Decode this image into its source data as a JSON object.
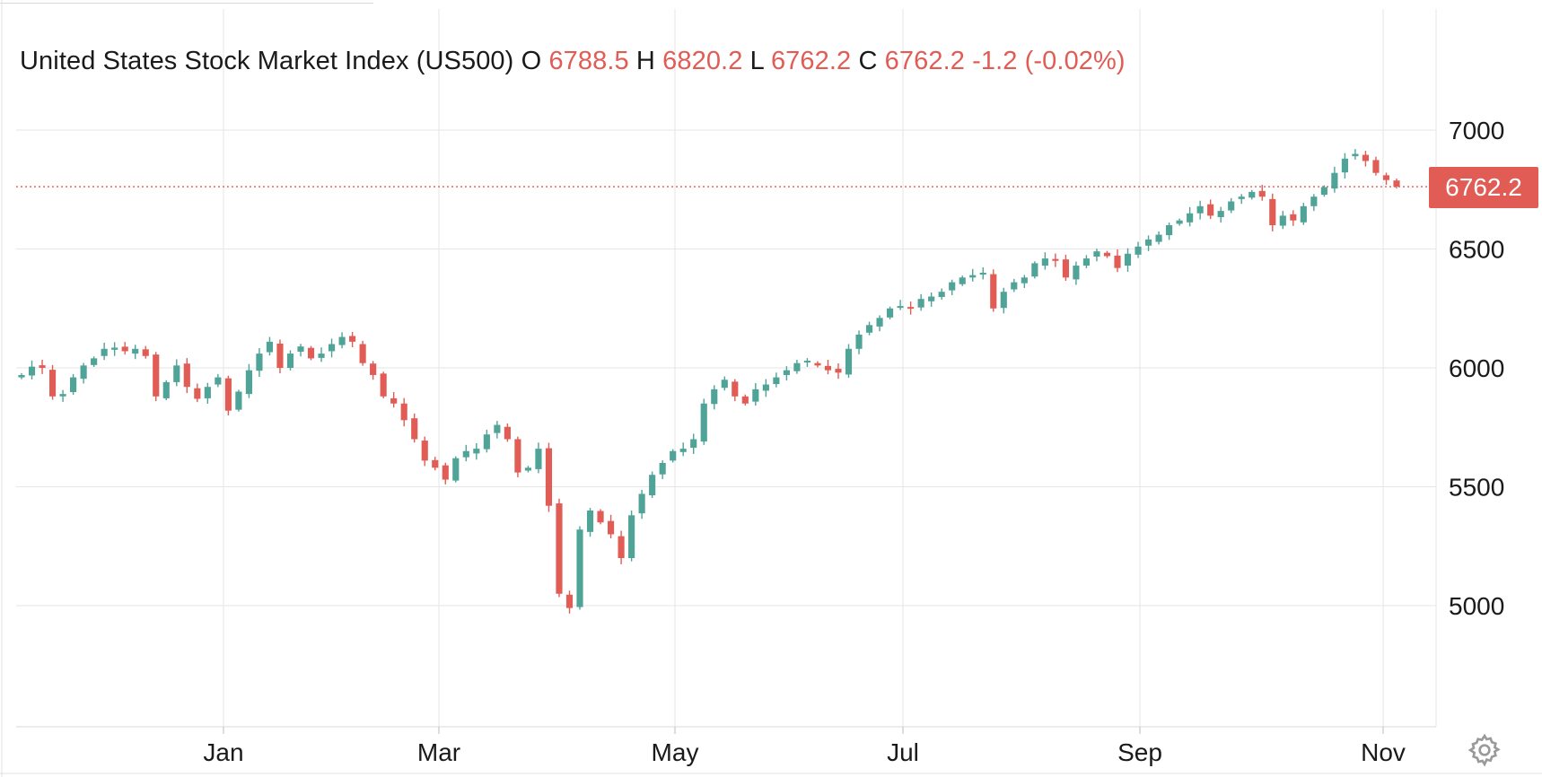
{
  "legend": {
    "title": "United States Stock Market Index (US500)",
    "o_label": "O",
    "o_value": "6788.5",
    "h_label": "H",
    "h_value": "6820.2",
    "l_label": "L",
    "l_value": "6762.2",
    "c_label": "C",
    "c_value": "6762.2",
    "change": "-1.2 (-0.02%)"
  },
  "last_price_label": "6762.2",
  "settings_icon": "gear-icon",
  "colors": {
    "up": "#4fa397",
    "down": "#e05c54",
    "grid": "#e6e6e6",
    "last_price_line": "#e05c54"
  },
  "chart_data": {
    "type": "candlestick",
    "title": "United States Stock Market Index (US500)",
    "xlabel": "",
    "ylabel": "",
    "ylim": [
      4500,
      7250
    ],
    "y_ticks": [
      "5000",
      "5500",
      "6000",
      "6500",
      "7000"
    ],
    "x_ticks": [
      "Jan",
      "Mar",
      "May",
      "Jul",
      "Sep",
      "Nov"
    ],
    "grid": true,
    "last_price": 6762.2,
    "ohlc": {
      "open": 6788.5,
      "high": 6820.2,
      "low": 6762.2,
      "close": 6762.2,
      "change": -1.2,
      "change_pct": -0.02
    },
    "x_axis_note": "approximately daily sessions from early December to early November",
    "close_path": [
      [
        "Dec",
        5970
      ],
      [
        "Dec",
        6005
      ],
      [
        "Dec",
        6000
      ],
      [
        "Dec",
        5880
      ],
      [
        "Dec",
        5890
      ],
      [
        "Dec",
        5960
      ],
      [
        "Dec",
        6010
      ],
      [
        "Dec",
        6040
      ],
      [
        "Dec",
        6080
      ],
      [
        "Dec",
        6085
      ],
      [
        "Dec",
        6070
      ],
      [
        "Dec",
        6080
      ],
      [
        "Dec",
        6050
      ],
      [
        "Jan",
        5880
      ],
      [
        "Jan",
        5940
      ],
      [
        "Jan",
        6010
      ],
      [
        "Jan",
        5920
      ],
      [
        "Jan",
        5870
      ],
      [
        "Jan",
        5920
      ],
      [
        "Jan",
        5960
      ],
      [
        "Jan",
        5820
      ],
      [
        "Jan",
        5900
      ],
      [
        "Jan",
        5990
      ],
      [
        "Jan",
        6060
      ],
      [
        "Jan",
        6110
      ],
      [
        "Feb",
        6000
      ],
      [
        "Feb",
        6060
      ],
      [
        "Feb",
        6090
      ],
      [
        "Feb",
        6040
      ],
      [
        "Feb",
        6060
      ],
      [
        "Feb",
        6100
      ],
      [
        "Feb",
        6130
      ],
      [
        "Feb",
        6110
      ],
      [
        "Feb",
        6020
      ],
      [
        "Feb",
        5970
      ],
      [
        "Feb",
        5880
      ],
      [
        "Feb",
        5850
      ],
      [
        "Mar",
        5780
      ],
      [
        "Mar",
        5700
      ],
      [
        "Mar",
        5610
      ],
      [
        "Mar",
        5580
      ],
      [
        "Mar",
        5530
      ],
      [
        "Mar",
        5620
      ],
      [
        "Mar",
        5650
      ],
      [
        "Mar",
        5660
      ],
      [
        "Mar",
        5720
      ],
      [
        "Mar",
        5760
      ],
      [
        "Mar",
        5700
      ],
      [
        "Mar",
        5560
      ],
      [
        "Apr",
        5580
      ],
      [
        "Apr",
        5660
      ],
      [
        "Apr",
        5420
      ],
      [
        "Apr",
        5050
      ],
      [
        "Apr",
        4990
      ],
      [
        "Apr",
        5320
      ],
      [
        "Apr",
        5400
      ],
      [
        "Apr",
        5350
      ],
      [
        "Apr",
        5300
      ],
      [
        "Apr",
        5200
      ],
      [
        "Apr",
        5380
      ],
      [
        "Apr",
        5470
      ],
      [
        "Apr",
        5550
      ],
      [
        "Apr",
        5600
      ],
      [
        "May",
        5650
      ],
      [
        "May",
        5660
      ],
      [
        "May",
        5700
      ],
      [
        "May",
        5850
      ],
      [
        "May",
        5910
      ],
      [
        "May",
        5950
      ],
      [
        "May",
        5880
      ],
      [
        "May",
        5850
      ],
      [
        "May",
        5910
      ],
      [
        "May",
        5930
      ],
      [
        "May",
        5960
      ],
      [
        "May",
        5990
      ],
      [
        "Jun",
        6020
      ],
      [
        "Jun",
        6030
      ],
      [
        "Jun",
        6010
      ],
      [
        "Jun",
        5990
      ],
      [
        "Jun",
        5980
      ],
      [
        "Jun",
        6080
      ],
      [
        "Jun",
        6140
      ],
      [
        "Jun",
        6180
      ],
      [
        "Jun",
        6210
      ],
      [
        "Jun",
        6250
      ],
      [
        "Jul",
        6260
      ],
      [
        "Jul",
        6250
      ],
      [
        "Jul",
        6290
      ],
      [
        "Jul",
        6300
      ],
      [
        "Jul",
        6320
      ],
      [
        "Jul",
        6360
      ],
      [
        "Jul",
        6380
      ],
      [
        "Jul",
        6390
      ],
      [
        "Jul",
        6400
      ],
      [
        "Jul",
        6250
      ],
      [
        "Jul",
        6320
      ],
      [
        "Jul",
        6360
      ],
      [
        "Aug",
        6380
      ],
      [
        "Aug",
        6440
      ],
      [
        "Aug",
        6460
      ],
      [
        "Aug",
        6450
      ],
      [
        "Aug",
        6380
      ],
      [
        "Aug",
        6430
      ],
      [
        "Aug",
        6460
      ],
      [
        "Aug",
        6490
      ],
      [
        "Aug",
        6470
      ],
      [
        "Aug",
        6420
      ],
      [
        "Sep",
        6480
      ],
      [
        "Sep",
        6510
      ],
      [
        "Sep",
        6540
      ],
      [
        "Sep",
        6560
      ],
      [
        "Sep",
        6600
      ],
      [
        "Sep",
        6620
      ],
      [
        "Sep",
        6650
      ],
      [
        "Sep",
        6680
      ],
      [
        "Sep",
        6640
      ],
      [
        "Sep",
        6660
      ],
      [
        "Sep",
        6700
      ],
      [
        "Oct",
        6720
      ],
      [
        "Oct",
        6740
      ],
      [
        "Oct",
        6720
      ],
      [
        "Oct",
        6600
      ],
      [
        "Oct",
        6640
      ],
      [
        "Oct",
        6620
      ],
      [
        "Oct",
        6680
      ],
      [
        "Oct",
        6720
      ],
      [
        "Oct",
        6760
      ],
      [
        "Oct",
        6820
      ],
      [
        "Oct",
        6880
      ],
      [
        "Oct",
        6900
      ],
      [
        "Oct",
        6870
      ],
      [
        "Nov",
        6820
      ],
      [
        "Nov",
        6790
      ],
      [
        "Nov",
        6762.2
      ]
    ]
  }
}
